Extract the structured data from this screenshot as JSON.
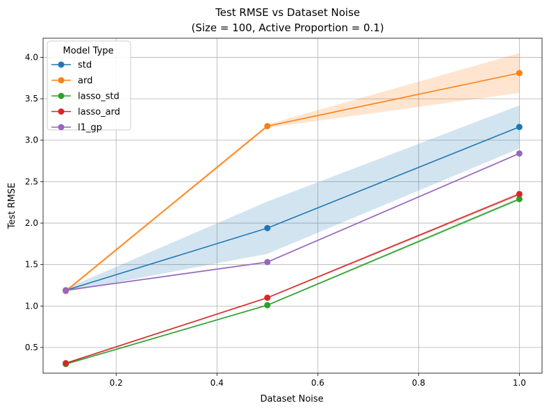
{
  "chart_data": {
    "type": "line",
    "title": "Test RMSE vs Dataset Noise",
    "subtitle": "(Size = 100, Active Proportion = 0.1)",
    "xlabel": "Dataset Noise",
    "ylabel": "Test RMSE",
    "xlim": [
      0.055,
      1.045
    ],
    "ylim": [
      0.19,
      4.23
    ],
    "xticks": [
      0.2,
      0.4,
      0.6,
      0.8,
      1.0
    ],
    "xtick_labels": [
      "0.2",
      "0.4",
      "0.6",
      "0.8",
      "1.0"
    ],
    "yticks": [
      0.5,
      1.0,
      1.5,
      2.0,
      2.5,
      3.0,
      3.5,
      4.0
    ],
    "ytick_labels": [
      "0.5",
      "1.0",
      "1.5",
      "2.0",
      "2.5",
      "3.0",
      "3.5",
      "4.0"
    ],
    "grid": true,
    "legend_title": "Model Type",
    "legend_position": "top-left",
    "x": [
      0.1,
      0.5,
      1.0
    ],
    "series": [
      {
        "name": "std",
        "color": "#1f77b4",
        "values": [
          1.19,
          1.94,
          3.16
        ],
        "band_low": [
          1.17,
          1.63,
          2.9
        ],
        "band_high": [
          1.21,
          2.26,
          3.42
        ]
      },
      {
        "name": "ard",
        "color": "#ff7f0e",
        "values": [
          1.18,
          3.17,
          3.81
        ],
        "band_low": [
          1.16,
          3.15,
          3.57
        ],
        "band_high": [
          1.2,
          3.19,
          4.05
        ]
      },
      {
        "name": "lasso_std",
        "color": "#2ca02c",
        "values": [
          0.3,
          1.01,
          2.29
        ],
        "band_low": [
          0.29,
          1.0,
          2.27
        ],
        "band_high": [
          0.31,
          1.02,
          2.31
        ]
      },
      {
        "name": "lasso_ard",
        "color": "#d62728",
        "values": [
          0.31,
          1.1,
          2.35
        ],
        "band_low": [
          0.3,
          1.09,
          2.33
        ],
        "band_high": [
          0.32,
          1.11,
          2.37
        ]
      },
      {
        "name": "l1_gp",
        "color": "#9467bd",
        "values": [
          1.19,
          1.53,
          2.84
        ],
        "band_low": [
          1.18,
          1.52,
          2.83
        ],
        "band_high": [
          1.2,
          1.54,
          2.85
        ]
      }
    ]
  }
}
